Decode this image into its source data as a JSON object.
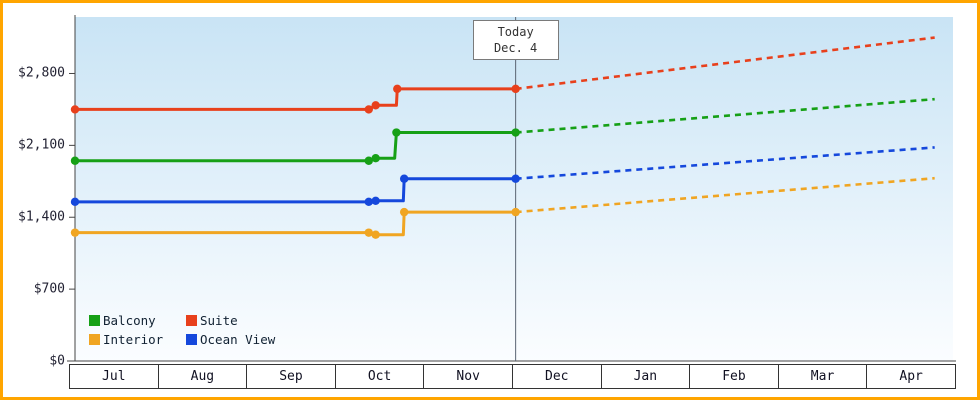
{
  "frame": {
    "border_color": "#ffa500",
    "background": "#ffffff"
  },
  "colors": {
    "plot_gradient_top": "#c9e4f5",
    "plot_gradient_bottom": "#fbfdff",
    "axis": "#444444",
    "today_line": "#5a6472",
    "tick_text": "#222233"
  },
  "chart_data": {
    "type": "line",
    "x_months": [
      "Jul",
      "Aug",
      "Sep",
      "Oct",
      "Nov",
      "Dec",
      "Jan",
      "Feb",
      "Mar",
      "Apr"
    ],
    "ylim": [
      0,
      3350
    ],
    "y_ticks": [
      {
        "value": 0,
        "label": "$0"
      },
      {
        "value": 700,
        "label": "$700"
      },
      {
        "value": 1400,
        "label": "$1,400"
      },
      {
        "value": 2100,
        "label": "$2,100"
      },
      {
        "value": 2800,
        "label": "$2,800"
      }
    ],
    "today": {
      "line1": "Today",
      "line2": "Dec. 4",
      "month_fraction": 5.1
    },
    "legend_position": "bottom-left",
    "series": [
      {
        "name": "Balcony",
        "color": "#16a016",
        "history": [
          [
            0,
            1950
          ],
          [
            3.4,
            1950
          ],
          [
            3.48,
            1975
          ],
          [
            3.7,
            1975
          ],
          [
            3.72,
            2225
          ],
          [
            5.1,
            2225
          ]
        ],
        "dots": [
          [
            0,
            1950
          ],
          [
            3.4,
            1950
          ],
          [
            3.48,
            1975
          ],
          [
            3.72,
            2225
          ],
          [
            5.1,
            2225
          ]
        ],
        "forecast": [
          [
            5.1,
            2225
          ],
          [
            9.95,
            2550
          ]
        ]
      },
      {
        "name": "Suite",
        "color": "#e8401c",
        "history": [
          [
            0,
            2450
          ],
          [
            3.4,
            2450
          ],
          [
            3.48,
            2490
          ],
          [
            3.72,
            2490
          ],
          [
            3.73,
            2650
          ],
          [
            5.1,
            2650
          ]
        ],
        "dots": [
          [
            0,
            2450
          ],
          [
            3.4,
            2450
          ],
          [
            3.48,
            2490
          ],
          [
            3.73,
            2650
          ],
          [
            5.1,
            2650
          ]
        ],
        "forecast": [
          [
            5.1,
            2650
          ],
          [
            9.95,
            3150
          ]
        ]
      },
      {
        "name": "Interior",
        "color": "#f0a522",
        "history": [
          [
            0,
            1250
          ],
          [
            3.4,
            1250
          ],
          [
            3.48,
            1230
          ],
          [
            3.8,
            1230
          ],
          [
            3.81,
            1450
          ],
          [
            5.1,
            1450
          ]
        ],
        "dots": [
          [
            0,
            1250
          ],
          [
            3.4,
            1250
          ],
          [
            3.48,
            1230
          ],
          [
            3.81,
            1450
          ],
          [
            5.1,
            1450
          ]
        ],
        "forecast": [
          [
            5.1,
            1450
          ],
          [
            9.95,
            1780
          ]
        ]
      },
      {
        "name": "Ocean View",
        "color": "#1548dc",
        "history": [
          [
            0,
            1550
          ],
          [
            3.4,
            1550
          ],
          [
            3.48,
            1560
          ],
          [
            3.8,
            1560
          ],
          [
            3.81,
            1775
          ],
          [
            5.1,
            1775
          ]
        ],
        "dots": [
          [
            0,
            1550
          ],
          [
            3.4,
            1550
          ],
          [
            3.48,
            1560
          ],
          [
            3.81,
            1775
          ],
          [
            5.1,
            1775
          ]
        ],
        "forecast": [
          [
            5.1,
            1775
          ],
          [
            9.95,
            2080
          ]
        ]
      }
    ]
  }
}
